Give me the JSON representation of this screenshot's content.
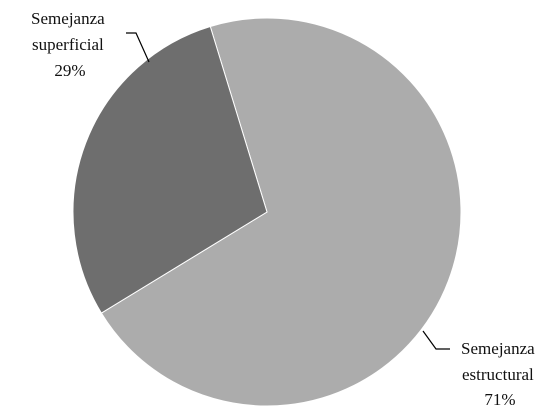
{
  "chart_data": {
    "type": "pie",
    "title": "",
    "slices": [
      {
        "name_lines": [
          "Semejanza",
          "estructural"
        ],
        "value": 71,
        "value_label": "71%",
        "color": "#acacac",
        "label_position": "bottom-right"
      },
      {
        "name_lines": [
          "Semejanza",
          "superficial"
        ],
        "value": 29,
        "value_label": "29%",
        "color": "#6e6e6e",
        "label_position": "top-left"
      }
    ],
    "legend": false
  }
}
